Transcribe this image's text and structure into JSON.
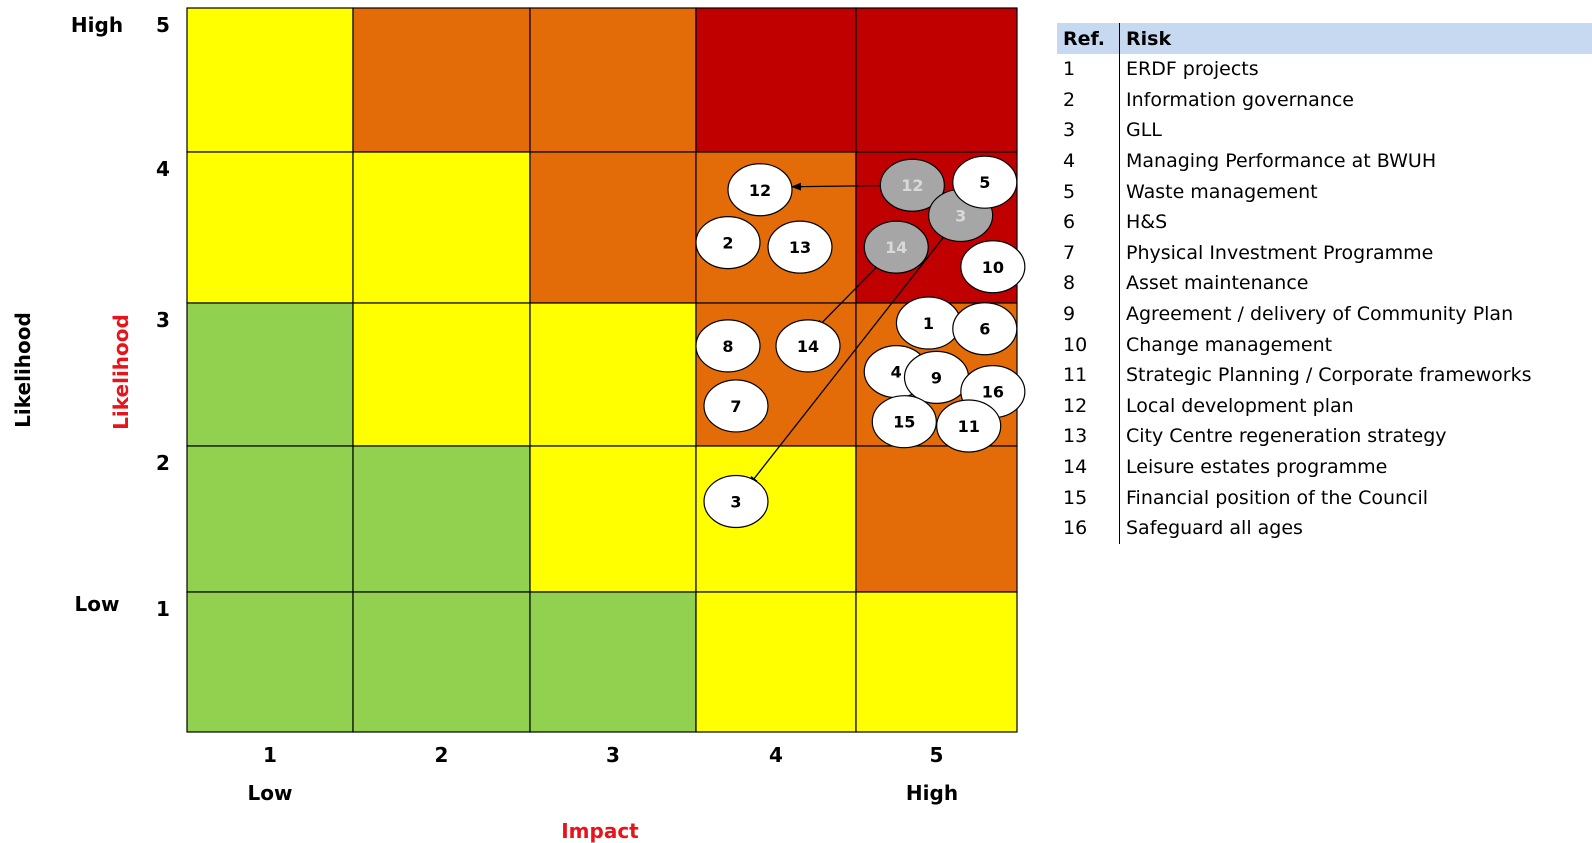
{
  "matrix": {
    "impact_title": "Impact",
    "likelihood_title_outer": "Likelihood",
    "likelihood_title_inner": "Likelihood",
    "impact_ticks": [
      "1",
      "2",
      "3",
      "4",
      "5"
    ],
    "likelihood_ticks": [
      "1",
      "2",
      "3",
      "4",
      "5"
    ],
    "impact_low": "Low",
    "impact_high": "High",
    "likelihood_low": "Low",
    "likelihood_high": "High",
    "cell_colors": [
      [
        "#ffff00",
        "#e36c09",
        "#e36c09",
        "#c00000",
        "#c00000"
      ],
      [
        "#ffff00",
        "#ffff00",
        "#e36c09",
        "#e36c09",
        "#c00000"
      ],
      [
        "#92d050",
        "#ffff00",
        "#ffff00",
        "#e36c09",
        "#e36c09"
      ],
      [
        "#92d050",
        "#92d050",
        "#ffff00",
        "#ffff00",
        "#e36c09"
      ],
      [
        "#92d050",
        "#92d050",
        "#92d050",
        "#ffff00",
        "#ffff00"
      ]
    ],
    "colors": {
      "green": "#92d050",
      "yellow": "#ffff00",
      "orange": "#e36c09",
      "red": "#c00000",
      "previous_marker": "#a6a6a6",
      "title_red": "#e8141b"
    },
    "markers": [
      {
        "label": "12",
        "impact": 4.4,
        "likelihood": 3.75,
        "state": "current"
      },
      {
        "label": "2",
        "impact": 4.2,
        "likelihood": 3.4,
        "state": "current"
      },
      {
        "label": "13",
        "impact": 4.65,
        "likelihood": 3.37,
        "state": "current"
      },
      {
        "label": "8",
        "impact": 4.2,
        "likelihood": 2.7,
        "state": "current"
      },
      {
        "label": "14",
        "impact": 4.7,
        "likelihood": 2.7,
        "state": "current"
      },
      {
        "label": "7",
        "impact": 4.25,
        "likelihood": 2.28,
        "state": "current"
      },
      {
        "label": "3",
        "impact": 4.25,
        "likelihood": 1.62,
        "state": "current"
      },
      {
        "label": "12",
        "impact": 5.35,
        "likelihood": 3.78,
        "state": "previous"
      },
      {
        "label": "14",
        "impact": 5.25,
        "likelihood": 3.37,
        "state": "previous"
      },
      {
        "label": "3",
        "impact": 5.65,
        "likelihood": 3.58,
        "state": "previous"
      },
      {
        "label": "5",
        "impact": 5.8,
        "likelihood": 3.8,
        "state": "current"
      },
      {
        "label": "10",
        "impact": 5.85,
        "likelihood": 3.24,
        "state": "current"
      },
      {
        "label": "1",
        "impact": 5.45,
        "likelihood": 2.86,
        "state": "current"
      },
      {
        "label": "6",
        "impact": 5.8,
        "likelihood": 2.82,
        "state": "current"
      },
      {
        "label": "4",
        "impact": 5.25,
        "likelihood": 2.52,
        "state": "current"
      },
      {
        "label": "9",
        "impact": 5.5,
        "likelihood": 2.48,
        "state": "current"
      },
      {
        "label": "16",
        "impact": 5.85,
        "likelihood": 2.38,
        "state": "current"
      },
      {
        "label": "15",
        "impact": 5.3,
        "likelihood": 2.17,
        "state": "current"
      },
      {
        "label": "11",
        "impact": 5.7,
        "likelihood": 2.14,
        "state": "current"
      }
    ],
    "arrows": [
      {
        "from": [
          5.35,
          3.78
        ],
        "to": [
          4.6,
          3.77
        ]
      },
      {
        "from": [
          5.25,
          3.37
        ],
        "to": [
          4.75,
          2.82
        ]
      },
      {
        "from": [
          5.65,
          3.58
        ],
        "to": [
          4.33,
          1.73
        ]
      }
    ]
  },
  "legend": {
    "header_ref": "Ref.",
    "header_risk": "Risk",
    "rows": [
      {
        "ref": "1",
        "risk": "ERDF projects"
      },
      {
        "ref": "2",
        "risk": "Information governance"
      },
      {
        "ref": "3",
        "risk": "GLL"
      },
      {
        "ref": "4",
        "risk": "Managing Performance at BWUH"
      },
      {
        "ref": "5",
        "risk": "Waste management"
      },
      {
        "ref": "6",
        "risk": "H&S"
      },
      {
        "ref": "7",
        "risk": "Physical Investment Programme"
      },
      {
        "ref": "8",
        "risk": "Asset maintenance"
      },
      {
        "ref": "9",
        "risk": "Agreement / delivery of Community Plan"
      },
      {
        "ref": "10",
        "risk": "Change management"
      },
      {
        "ref": "11",
        "risk": "Strategic Planning / Corporate frameworks"
      },
      {
        "ref": "12",
        "risk": "Local development plan"
      },
      {
        "ref": "13",
        "risk": "City Centre regeneration strategy"
      },
      {
        "ref": "14",
        "risk": "Leisure estates programme"
      },
      {
        "ref": "15",
        "risk": "Financial position of the Council"
      },
      {
        "ref": "16",
        "risk": "Safeguard all ages"
      }
    ]
  }
}
